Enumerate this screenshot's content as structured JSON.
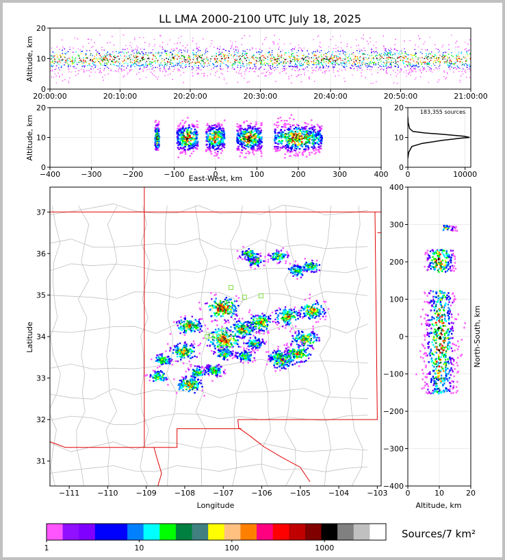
{
  "chart_data": [
    {
      "type": "scatter",
      "panel": "altitude-vs-time",
      "title": "LL LMA 2000-2100 UTC July 18, 2025",
      "ylabel": "Altitude, km",
      "xlabel": "",
      "xlim": [
        "20:00:00",
        "21:00:00"
      ],
      "ylim": [
        0,
        20
      ],
      "x_ticks": [
        "20:00:00",
        "20:10:00",
        "20:20:00",
        "20:30:00",
        "20:40:00",
        "20:50:00",
        "21:00:00"
      ],
      "y_ticks": [
        "0",
        "10",
        "20"
      ],
      "altitude_core_km": [
        6,
        13
      ],
      "altitude_extent_km": [
        2,
        18
      ]
    },
    {
      "type": "heatmap",
      "panel": "altitude-vs-east-west",
      "xlabel": "East-West, km",
      "ylabel": "Altitude, km",
      "xlim": [
        -400,
        400
      ],
      "ylim": [
        0,
        20
      ],
      "x_ticks": [
        "−400",
        "−300",
        "−200",
        "−100",
        "0",
        "100",
        "200",
        "300",
        "400"
      ],
      "y_ticks": [
        "0",
        "10",
        "20"
      ],
      "clusters": [
        {
          "x_range": [
            -148,
            -138
          ],
          "z_range": [
            6,
            18
          ]
        },
        {
          "x_range": [
            -95,
            -45
          ],
          "z_range": [
            1,
            17
          ]
        },
        {
          "x_range": [
            -25,
            20
          ],
          "z_range": [
            0,
            19
          ]
        },
        {
          "x_range": [
            50,
            110
          ],
          "z_range": [
            3,
            17
          ]
        },
        {
          "x_range": [
            140,
            255
          ],
          "z_range": [
            2,
            19
          ]
        }
      ]
    },
    {
      "type": "line",
      "panel": "altitude-histogram",
      "annotation": "183,355 sources",
      "xlim": [
        0,
        11000
      ],
      "ylim": [
        0,
        20
      ],
      "x_ticks": [
        "0",
        "10000"
      ],
      "y_ticks": [
        "0",
        "10",
        "20"
      ],
      "x": [
        0,
        150,
        700,
        2500,
        6000,
        9500,
        10800,
        9800,
        6500,
        3000,
        900,
        300,
        60,
        0
      ],
      "y": [
        3,
        5,
        7,
        8,
        9,
        9.8,
        10,
        10.4,
        11,
        11.5,
        12,
        13,
        15,
        17
      ]
    },
    {
      "type": "heatmap",
      "panel": "plan-view-map",
      "xlabel": "Longitude",
      "ylabel": "Latitude",
      "xlim": [
        -111.5,
        -102.9
      ],
      "ylim": [
        30.4,
        37.6
      ],
      "x_ticks": [
        "−111",
        "−110",
        "−109",
        "−108",
        "−107",
        "−106",
        "−105",
        "−104",
        "−103"
      ],
      "y_ticks": [
        "31",
        "32",
        "33",
        "34",
        "35",
        "36",
        "37"
      ],
      "clusters": [
        {
          "lon": -107.05,
          "lat": 34.7,
          "size": 3
        },
        {
          "lon": -107.0,
          "lat": 33.95,
          "size": 3
        },
        {
          "lon": -107.9,
          "lat": 34.28,
          "size": 2
        },
        {
          "lon": -106.5,
          "lat": 34.2,
          "size": 2
        },
        {
          "lon": -106.05,
          "lat": 34.35,
          "size": 2
        },
        {
          "lon": -105.35,
          "lat": 34.5,
          "size": 2
        },
        {
          "lon": -104.7,
          "lat": 34.65,
          "size": 2
        },
        {
          "lon": -104.9,
          "lat": 33.95,
          "size": 2
        },
        {
          "lon": -105.1,
          "lat": 33.6,
          "size": 2
        },
        {
          "lon": -105.5,
          "lat": 33.45,
          "size": 2
        },
        {
          "lon": -108.05,
          "lat": 33.65,
          "size": 2
        },
        {
          "lon": -107.7,
          "lat": 33.15,
          "size": 1
        },
        {
          "lon": -107.25,
          "lat": 33.2,
          "size": 1
        },
        {
          "lon": -107.0,
          "lat": 33.6,
          "size": 1
        },
        {
          "lon": -107.9,
          "lat": 32.85,
          "size": 2
        },
        {
          "lon": -108.7,
          "lat": 33.05,
          "size": 1
        },
        {
          "lon": -108.6,
          "lat": 33.45,
          "size": 1
        },
        {
          "lon": -106.2,
          "lat": 35.85,
          "size": 1
        },
        {
          "lon": -106.35,
          "lat": 36.0,
          "size": 1
        },
        {
          "lon": -105.6,
          "lat": 35.95,
          "size": 1
        },
        {
          "lon": -105.1,
          "lat": 35.6,
          "size": 1
        },
        {
          "lon": -104.75,
          "lat": 35.7,
          "size": 1
        },
        {
          "lon": -106.45,
          "lat": 33.55,
          "size": 1
        },
        {
          "lon": -106.2,
          "lat": 33.85,
          "size": 1
        },
        {
          "lon": -105.6,
          "lat": 33.55,
          "size": 1
        }
      ],
      "station_color": "#80e040",
      "stations": [
        {
          "lon": -106.8,
          "lat": 35.18
        },
        {
          "lon": -106.45,
          "lat": 34.95
        },
        {
          "lon": -106.02,
          "lat": 34.98
        },
        {
          "lon": -106.85,
          "lat": 34.62
        },
        {
          "lon": -107.0,
          "lat": 34.15
        },
        {
          "lon": -107.32,
          "lat": 34.02
        },
        {
          "lon": -107.42,
          "lat": 34.0
        },
        {
          "lon": -107.12,
          "lat": 34.0
        },
        {
          "lon": -107.05,
          "lat": 33.75
        }
      ],
      "state_border_color": "#e00000",
      "county_border_color": "#c0c0c0"
    },
    {
      "type": "heatmap",
      "panel": "north-south-vs-altitude",
      "xlabel": "Altitude, km",
      "ylabel": "North-South, km",
      "xlim": [
        0,
        20
      ],
      "ylim": [
        -400,
        400
      ],
      "x_ticks": [
        "0",
        "10",
        "20"
      ],
      "y_ticks": [
        "−400",
        "−300",
        "−200",
        "−100",
        "0",
        "100",
        "200",
        "300",
        "400"
      ],
      "clusters": [
        {
          "ns_range": [
            175,
            235
          ],
          "z_range": [
            5,
            15
          ]
        },
        {
          "ns_range": [
            -150,
            125
          ],
          "z_range": [
            0,
            20
          ]
        },
        {
          "ns_range": [
            285,
            300
          ],
          "z_range": [
            11,
            16
          ]
        }
      ]
    }
  ],
  "colorbar": {
    "label": "Sources/7 km²",
    "tick_labels": [
      "1",
      "10",
      "100",
      "1000"
    ],
    "colors": [
      "#ff55ff",
      "#9010ff",
      "#8000ff",
      "#0000ff",
      "#0000ff",
      "#0080ff",
      "#00ffff",
      "#00ff00",
      "#008040",
      "#408080",
      "#ffff00",
      "#ffc080",
      "#ff8000",
      "#ff0080",
      "#ff0000",
      "#c00000",
      "#800000",
      "#000000",
      "#808080",
      "#c0c0c0",
      "#ffffff"
    ]
  }
}
